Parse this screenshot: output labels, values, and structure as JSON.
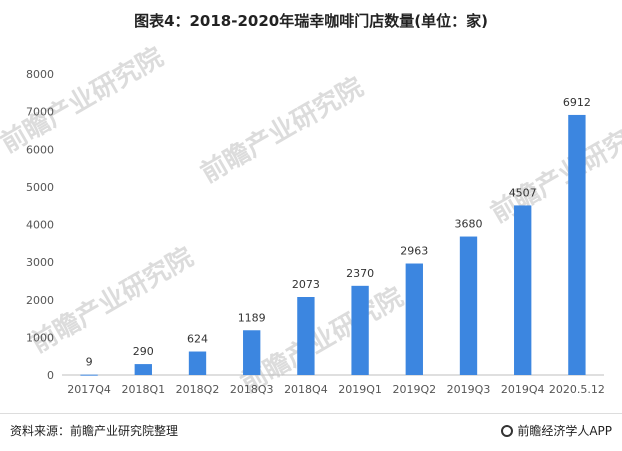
{
  "page": {
    "title": "图表4：2018-2020年瑞幸咖啡门店数量(单位：家)",
    "source": "资料来源：前瞻产业研究院整理",
    "brand": "前瞻经济学人APP",
    "watermark_text": "前瞻产业研究院",
    "watermark_logo": "前瞻产业研究院"
  },
  "colors": {
    "bar": "#3c86e0",
    "axis": "#bfbfbf"
  },
  "icons": {
    "brand": "ring-icon"
  },
  "chart_data": {
    "type": "bar",
    "title": "图表4：2018-2020年瑞幸咖啡门店数量(单位：家)",
    "xlabel": "",
    "ylabel": "",
    "categories": [
      "2017Q4",
      "2018Q1",
      "2018Q2",
      "2018Q3",
      "2018Q4",
      "2019Q1",
      "2019Q2",
      "2019Q3",
      "2019Q4",
      "2020.5.12"
    ],
    "values": [
      9,
      290,
      624,
      1189,
      2073,
      2370,
      2963,
      3680,
      4507,
      6912
    ],
    "ylim": [
      0,
      8000
    ],
    "yticks": [
      0,
      1000,
      2000,
      3000,
      4000,
      5000,
      6000,
      7000,
      8000
    ],
    "grid": false,
    "legend": "none"
  }
}
